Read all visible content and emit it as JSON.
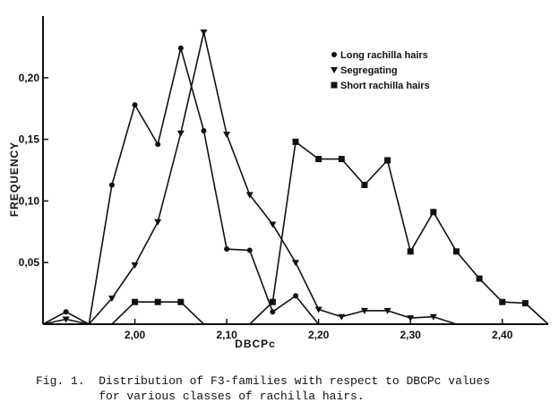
{
  "chart_data": {
    "type": "line",
    "title": "",
    "xlabel": "DBCPc",
    "ylabel": "FREQUENCY",
    "xlim": [
      1.9,
      2.45
    ],
    "ylim": [
      0,
      0.25
    ],
    "x_ticks": [
      {
        "value": 2.0,
        "label": "2,00"
      },
      {
        "value": 2.1,
        "label": "2,10"
      },
      {
        "value": 2.2,
        "label": "2,20"
      },
      {
        "value": 2.3,
        "label": "2,30"
      },
      {
        "value": 2.4,
        "label": "2,40"
      }
    ],
    "y_ticks": [
      {
        "value": 0.05,
        "label": "0,05"
      },
      {
        "value": 0.1,
        "label": "0,10"
      },
      {
        "value": 0.15,
        "label": "0,15"
      },
      {
        "value": 0.2,
        "label": "0,20"
      }
    ],
    "grid": false,
    "legend_position": "top-right",
    "series": [
      {
        "name": "Long rachilla hairs",
        "marker": "circle",
        "points": [
          [
            1.9,
            0.0
          ],
          [
            1.925,
            0.01
          ],
          [
            1.95,
            0.0
          ],
          [
            1.975,
            0.113
          ],
          [
            2.0,
            0.178
          ],
          [
            2.025,
            0.146
          ],
          [
            2.05,
            0.224
          ],
          [
            2.075,
            0.157
          ],
          [
            2.1,
            0.061
          ],
          [
            2.125,
            0.06
          ],
          [
            2.15,
            0.01
          ],
          [
            2.175,
            0.023
          ],
          [
            2.2,
            0.0
          ],
          [
            2.45,
            0.0
          ]
        ]
      },
      {
        "name": "Segregating",
        "marker": "triangle-down",
        "points": [
          [
            1.9,
            0.0
          ],
          [
            1.925,
            0.004
          ],
          [
            1.95,
            0.0
          ],
          [
            1.975,
            0.021
          ],
          [
            2.0,
            0.048
          ],
          [
            2.025,
            0.083
          ],
          [
            2.05,
            0.155
          ],
          [
            2.075,
            0.237
          ],
          [
            2.1,
            0.154
          ],
          [
            2.125,
            0.105
          ],
          [
            2.15,
            0.081
          ],
          [
            2.175,
            0.05
          ],
          [
            2.2,
            0.012
          ],
          [
            2.225,
            0.006
          ],
          [
            2.25,
            0.011
          ],
          [
            2.275,
            0.011
          ],
          [
            2.3,
            0.005
          ],
          [
            2.325,
            0.006
          ],
          [
            2.35,
            0.0
          ],
          [
            2.45,
            0.0
          ]
        ]
      },
      {
        "name": "Short rachilla hairs",
        "marker": "square",
        "points": [
          [
            1.9,
            0.0
          ],
          [
            1.975,
            0.0
          ],
          [
            2.0,
            0.018
          ],
          [
            2.025,
            0.018
          ],
          [
            2.05,
            0.018
          ],
          [
            2.075,
            0.0
          ],
          [
            2.1,
            0.0
          ],
          [
            2.125,
            0.0
          ],
          [
            2.15,
            0.018
          ],
          [
            2.175,
            0.148
          ],
          [
            2.2,
            0.134
          ],
          [
            2.225,
            0.134
          ],
          [
            2.25,
            0.113
          ],
          [
            2.275,
            0.133
          ],
          [
            2.3,
            0.059
          ],
          [
            2.325,
            0.091
          ],
          [
            2.35,
            0.059
          ],
          [
            2.375,
            0.037
          ],
          [
            2.4,
            0.018
          ],
          [
            2.425,
            0.017
          ],
          [
            2.45,
            0.0
          ]
        ]
      }
    ]
  },
  "caption": {
    "line1": "Fig. 1.  Distribution of F3-families with respect to DBCPc values",
    "line2": "         for various classes of rachilla hairs."
  },
  "colors": {
    "ink": "#111111"
  }
}
